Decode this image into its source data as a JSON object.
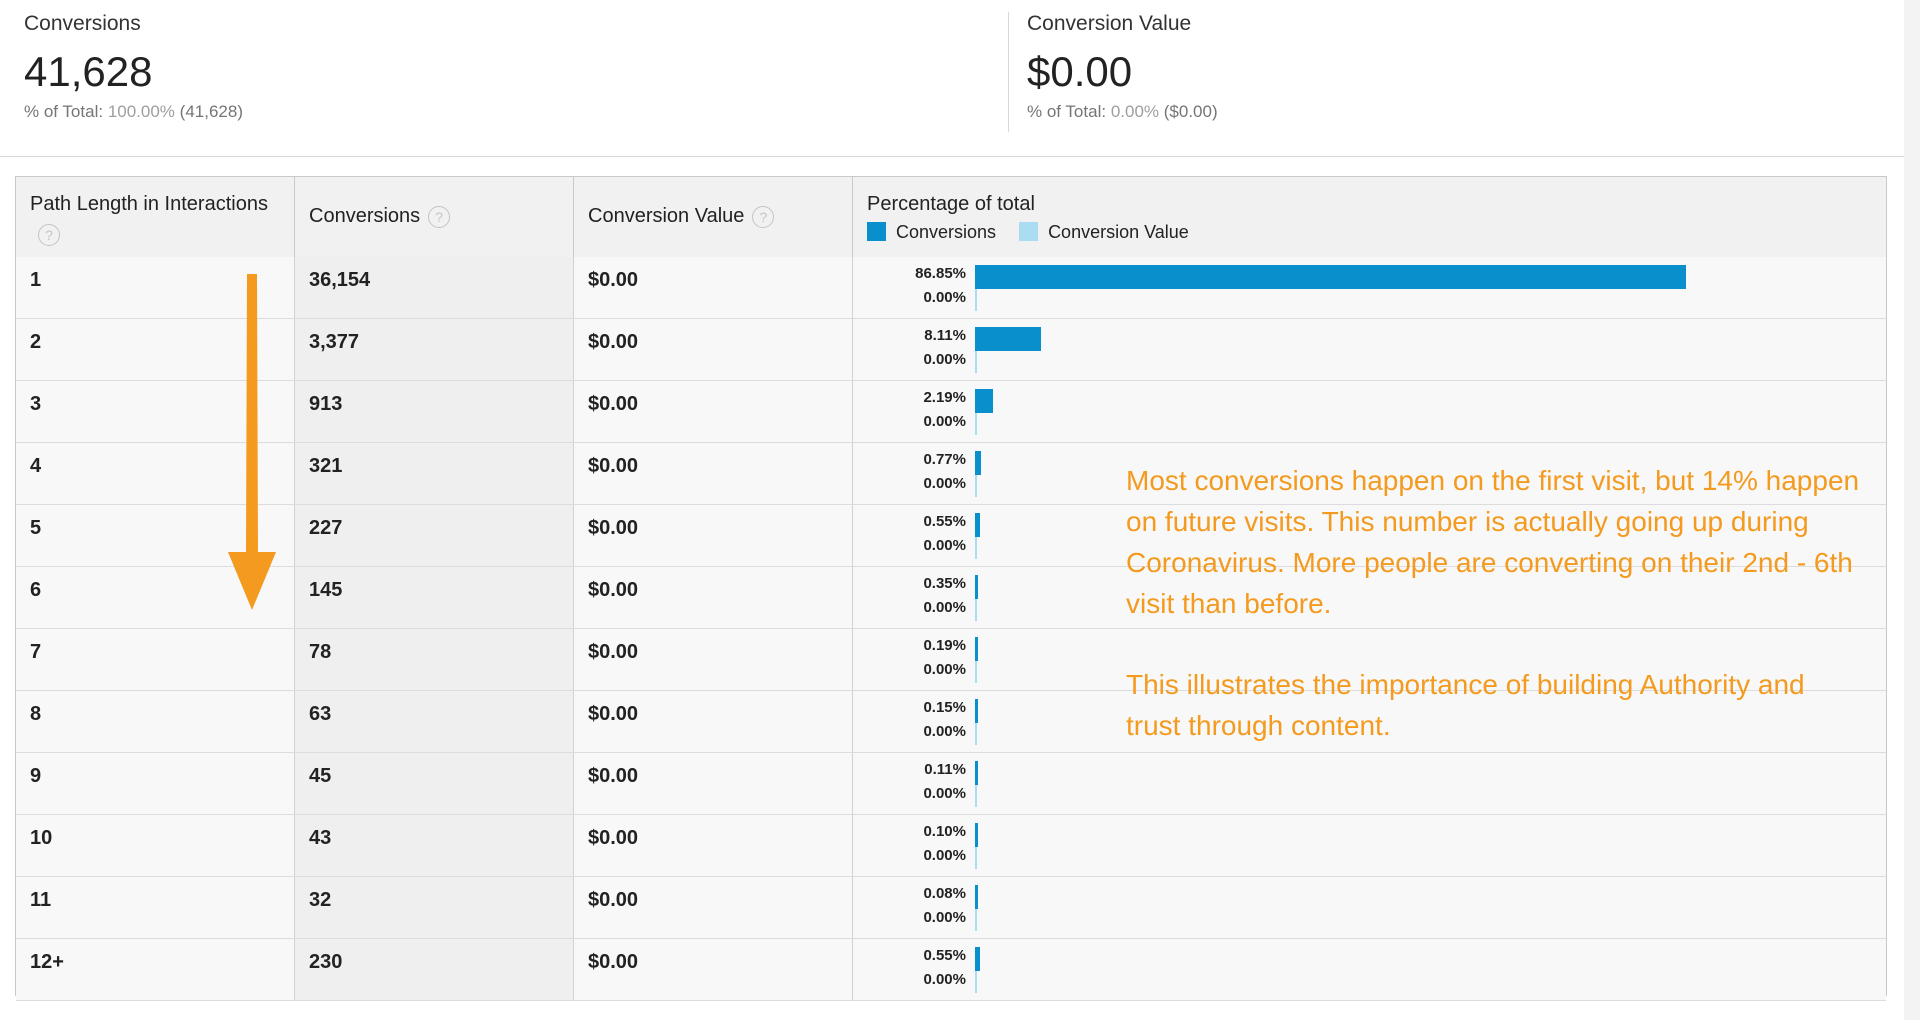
{
  "summary": {
    "conversions": {
      "label": "Conversions",
      "value": "41,628",
      "pct_prefix": "% of Total:",
      "pct_value": "100.00%",
      "pct_suffix": "(41,628)"
    },
    "conversion_value": {
      "label": "Conversion Value",
      "value": "$0.00",
      "pct_prefix": "% of Total:",
      "pct_value": "0.00%",
      "pct_suffix": "($0.00)"
    }
  },
  "table": {
    "headers": {
      "path_length": "Path Length in Interactions",
      "conversions": "Conversions",
      "conversion_value": "Conversion Value",
      "percentage": "Percentage of total"
    },
    "help_glyph": "?",
    "legend": {
      "conversions": "Conversions",
      "conversion_value": "Conversion Value"
    },
    "colors": {
      "conversions": "#0a8fcd",
      "conversion_value": "#aadcf2"
    },
    "rows": [
      {
        "path_length": "1",
        "conversions": "36,154",
        "conversion_value": "$0.00",
        "pct_conversions": "86.85%",
        "pct_value": "0.00%",
        "share": 0.8685
      },
      {
        "path_length": "2",
        "conversions": "3,377",
        "conversion_value": "$0.00",
        "pct_conversions": "8.11%",
        "pct_value": "0.00%",
        "share": 0.0811
      },
      {
        "path_length": "3",
        "conversions": "913",
        "conversion_value": "$0.00",
        "pct_conversions": "2.19%",
        "pct_value": "0.00%",
        "share": 0.0219
      },
      {
        "path_length": "4",
        "conversions": "321",
        "conversion_value": "$0.00",
        "pct_conversions": "0.77%",
        "pct_value": "0.00%",
        "share": 0.0077
      },
      {
        "path_length": "5",
        "conversions": "227",
        "conversion_value": "$0.00",
        "pct_conversions": "0.55%",
        "pct_value": "0.00%",
        "share": 0.0055
      },
      {
        "path_length": "6",
        "conversions": "145",
        "conversion_value": "$0.00",
        "pct_conversions": "0.35%",
        "pct_value": "0.00%",
        "share": 0.0035
      },
      {
        "path_length": "7",
        "conversions": "78",
        "conversion_value": "$0.00",
        "pct_conversions": "0.19%",
        "pct_value": "0.00%",
        "share": 0.0019
      },
      {
        "path_length": "8",
        "conversions": "63",
        "conversion_value": "$0.00",
        "pct_conversions": "0.15%",
        "pct_value": "0.00%",
        "share": 0.0015
      },
      {
        "path_length": "9",
        "conversions": "45",
        "conversion_value": "$0.00",
        "pct_conversions": "0.11%",
        "pct_value": "0.00%",
        "share": 0.0011
      },
      {
        "path_length": "10",
        "conversions": "43",
        "conversion_value": "$0.00",
        "pct_conversions": "0.10%",
        "pct_value": "0.00%",
        "share": 0.001
      },
      {
        "path_length": "11",
        "conversions": "32",
        "conversion_value": "$0.00",
        "pct_conversions": "0.08%",
        "pct_value": "0.00%",
        "share": 0.0008
      },
      {
        "path_length": "12+",
        "conversions": "230",
        "conversion_value": "$0.00",
        "pct_conversions": "0.55%",
        "pct_value": "0.00%",
        "share": 0.0055
      }
    ]
  },
  "annotation": {
    "color": "#f39a1f",
    "arrow_icon": "arrow-down-icon",
    "line1": "Most conversions happen on the first visit, but 14% happen on future visits. This number is actually going up during Coronavirus. More people are converting on their 2nd - 6th visit than before.",
    "line2": "This illustrates the importance of building Authority and trust through content."
  }
}
